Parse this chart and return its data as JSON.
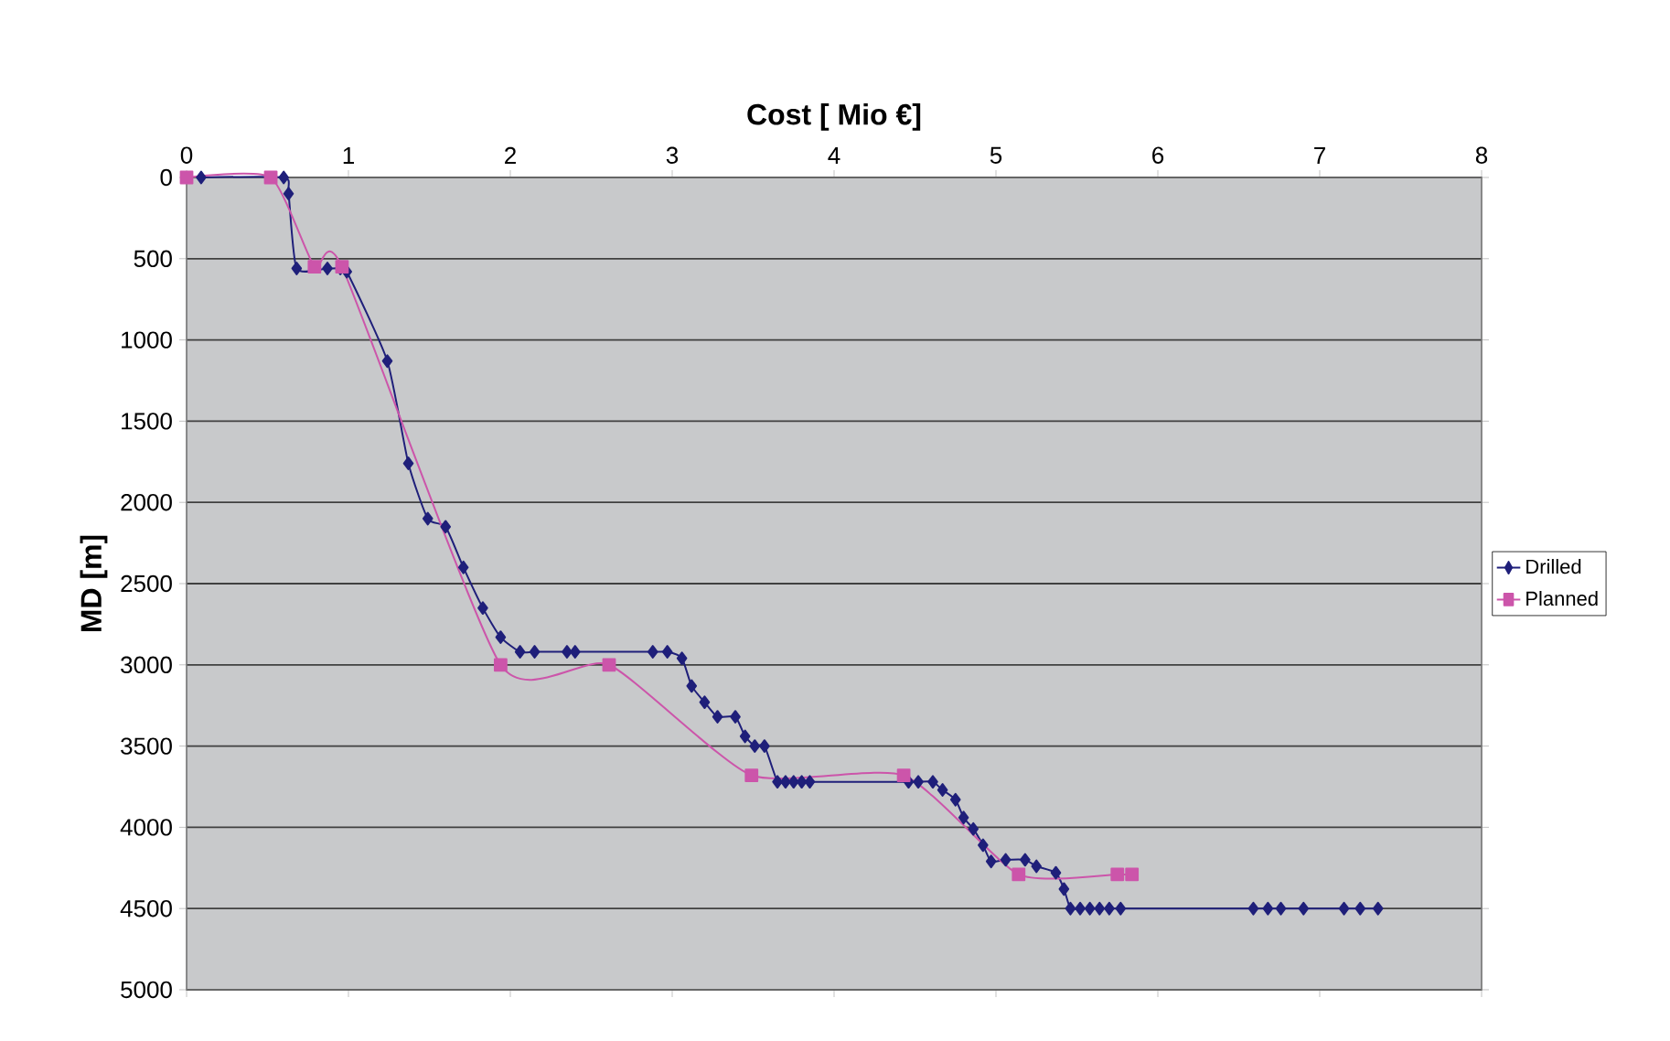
{
  "chart_data": {
    "type": "line",
    "xlabel": "Cost [ Mio €]",
    "ylabel": "MD [m]",
    "xlim": [
      0,
      8
    ],
    "xticks": [
      0,
      1,
      2,
      3,
      4,
      5,
      6,
      7,
      8
    ],
    "ylim": [
      5000,
      0
    ],
    "yticks": [
      0,
      500,
      1000,
      1500,
      2000,
      2500,
      3000,
      3500,
      4000,
      4500,
      5000
    ],
    "grid": "y",
    "legend": "right",
    "series": [
      {
        "name": "Drilled",
        "color": "#1f1f7a",
        "marker": "diamond",
        "x": [
          0.09,
          0.6,
          0.63,
          0.68,
          0.87,
          0.95,
          0.99,
          1.24,
          1.37,
          1.49,
          1.6,
          1.71,
          1.83,
          1.94,
          2.06,
          2.15,
          2.35,
          2.4,
          2.88,
          2.97,
          3.06,
          3.12,
          3.2,
          3.28,
          3.39,
          3.45,
          3.51,
          3.57,
          3.65,
          3.7,
          3.75,
          3.8,
          3.85,
          4.46,
          4.52,
          4.61,
          4.67,
          4.75,
          4.8,
          4.86,
          4.92,
          4.97,
          5.06,
          5.18,
          5.25,
          5.37,
          5.42,
          5.46,
          5.52,
          5.58,
          5.64,
          5.7,
          5.77,
          6.59,
          6.68,
          6.76,
          6.9,
          7.15,
          7.25,
          7.36
        ],
        "values": [
          0,
          0,
          100,
          560,
          560,
          560,
          580,
          1130,
          1760,
          2100,
          2150,
          2400,
          2650,
          2830,
          2920,
          2920,
          2920,
          2920,
          2920,
          2920,
          2960,
          3130,
          3230,
          3320,
          3320,
          3440,
          3500,
          3500,
          3720,
          3720,
          3720,
          3720,
          3720,
          3720,
          3720,
          3720,
          3770,
          3830,
          3940,
          4010,
          4110,
          4210,
          4200,
          4200,
          4240,
          4280,
          4380,
          4500,
          4500,
          4500,
          4500,
          4500,
          4500,
          4500,
          4500,
          4500,
          4500,
          4500,
          4500,
          4500
        ]
      },
      {
        "name": "Planned",
        "color": "#cc55aa",
        "marker": "square",
        "x": [
          0,
          0.52,
          0.79,
          0.96,
          1.94,
          2.61,
          3.49,
          4.43,
          5.14,
          5.75,
          5.84
        ],
        "values": [
          0,
          0,
          550,
          550,
          3000,
          3000,
          3680,
          3680,
          4290,
          4290,
          4290
        ]
      }
    ]
  }
}
